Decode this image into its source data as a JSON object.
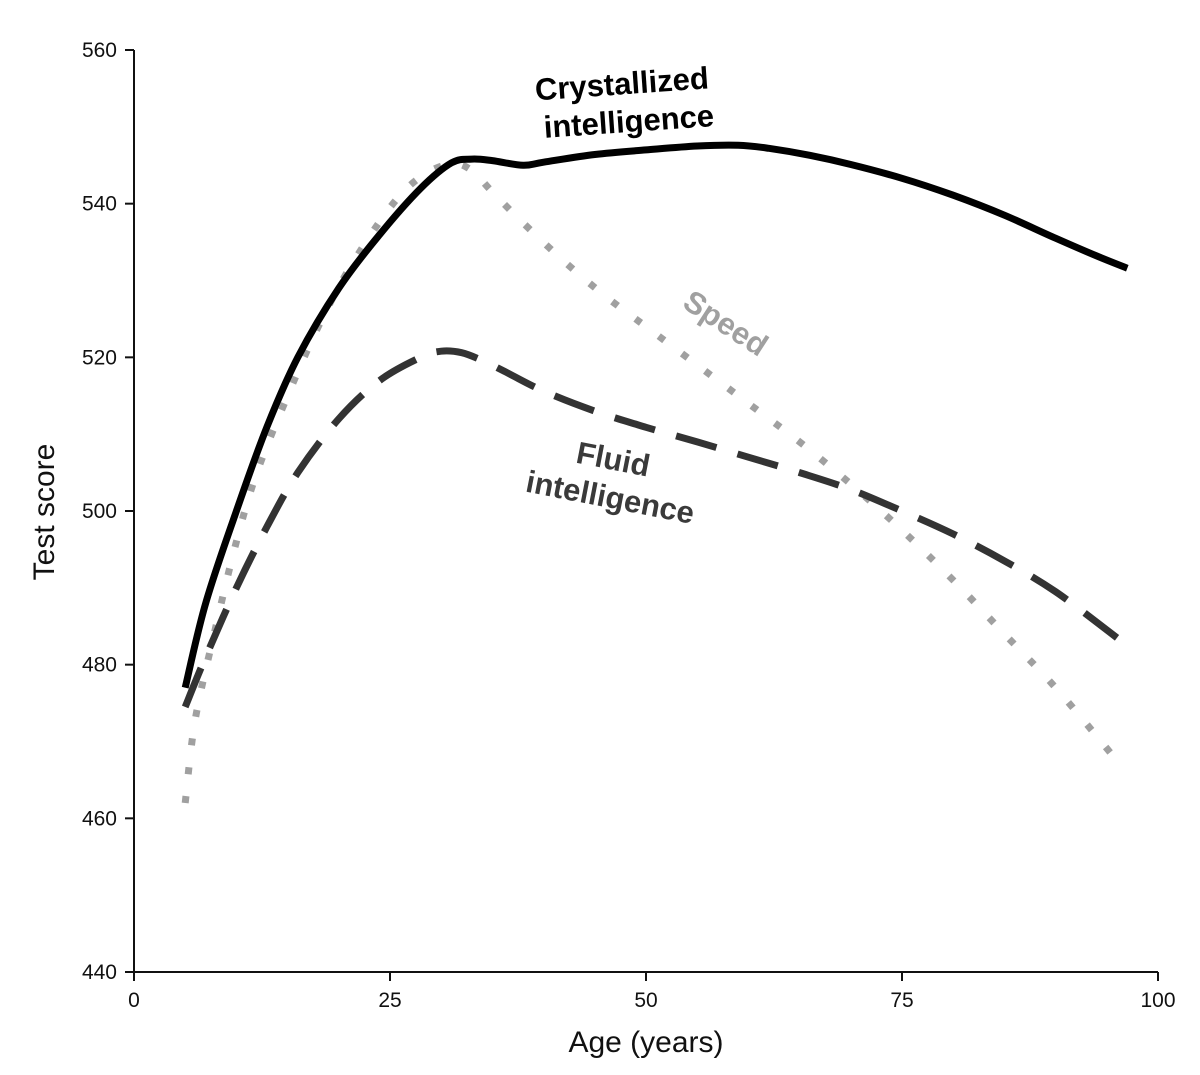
{
  "chart_data": {
    "type": "line",
    "title": "",
    "xlabel": "Age (years)",
    "ylabel": "Test score",
    "xlim": [
      0,
      100
    ],
    "ylim": [
      440,
      560
    ],
    "xticks": [
      0,
      25,
      50,
      75,
      100
    ],
    "yticks": [
      440,
      460,
      480,
      500,
      520,
      540,
      560
    ],
    "grid": false,
    "series": [
      {
        "id": "crystallized",
        "name": "Crystallized intelligence",
        "label_lines": [
          "Crystallized",
          "intelligence"
        ],
        "color": "#000000",
        "style": "solid",
        "x": [
          5,
          7,
          10,
          13,
          16,
          20,
          24,
          28,
          31,
          33,
          35,
          38,
          40,
          45,
          50,
          55,
          59,
          62,
          66,
          70,
          75,
          80,
          85,
          90,
          94,
          97
        ],
        "y": [
          477,
          488,
          500,
          511,
          520,
          529,
          536,
          542,
          545.3,
          545.8,
          545.6,
          545,
          545.4,
          546.4,
          547,
          547.5,
          547.6,
          547.2,
          546.3,
          545.1,
          543.3,
          541.1,
          538.5,
          535.5,
          533.2,
          531.6
        ]
      },
      {
        "id": "fluid",
        "name": "Fluid intelligence",
        "label_lines": [
          "Fluid",
          "intelligence"
        ],
        "color": "#333333",
        "style": "dashed",
        "x": [
          5,
          7,
          10,
          13,
          16,
          20,
          24,
          28,
          30,
          32,
          34,
          36,
          40,
          45,
          50,
          55,
          60,
          65,
          70,
          75,
          80,
          85,
          90,
          96
        ],
        "y": [
          474.5,
          481,
          490,
          498,
          505,
          512,
          517,
          520,
          520.8,
          520.6,
          519.6,
          518.3,
          515.6,
          513,
          510.9,
          509,
          507,
          505,
          502.8,
          500,
          497,
          493.5,
          489.5,
          483.5
        ]
      },
      {
        "id": "speed",
        "name": "Speed",
        "label_lines": [
          "Speed"
        ],
        "color": "#a0a0a0",
        "style": "dotted",
        "x": [
          5,
          6,
          8,
          10,
          12,
          15,
          18,
          21,
          25,
          28,
          31,
          33,
          35,
          38,
          42,
          46,
          50,
          55,
          60,
          65,
          70,
          75,
          80,
          85,
          90,
          96
        ],
        "y": [
          462,
          473,
          485,
          496,
          505,
          515,
          524,
          531.5,
          539.5,
          543.5,
          545.2,
          544.3,
          541.5,
          537.5,
          532.5,
          528,
          524,
          519,
          514,
          509,
          503.5,
          497.5,
          491,
          484,
          477,
          467.5
        ]
      }
    ]
  }
}
